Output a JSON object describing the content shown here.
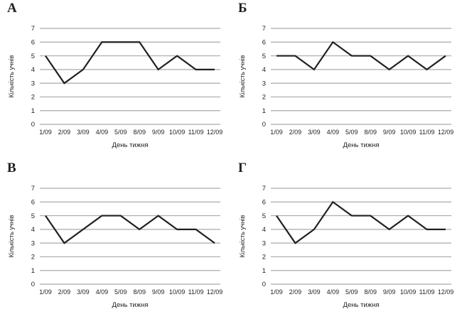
{
  "page": {
    "background": "#ffffff"
  },
  "colors": {
    "line": "#231f20",
    "grid": "#a8aaad",
    "text": "#231f20"
  },
  "chart_data": [
    {
      "type": "line",
      "panel_label": "А",
      "categories": [
        "1/09",
        "2/09",
        "3/09",
        "4/09",
        "5/09",
        "8/09",
        "9/09",
        "10/09",
        "11/09",
        "12/09"
      ],
      "values": [
        5,
        3,
        4,
        6,
        6,
        6,
        4,
        5,
        4,
        4
      ],
      "title": "",
      "xlabel": "День тижня",
      "ylabel": "Кількість учнів",
      "ylim": [
        0,
        7
      ],
      "yticks": [
        0,
        1,
        2,
        3,
        4,
        5,
        6,
        7
      ],
      "grid": "horizontal",
      "legend": "none"
    },
    {
      "type": "line",
      "panel_label": "Б",
      "categories": [
        "1/09",
        "2/09",
        "3/09",
        "4/09",
        "5/09",
        "8/09",
        "9/09",
        "10/09",
        "11/09",
        "12/09"
      ],
      "values": [
        5,
        5,
        4,
        6,
        5,
        5,
        4,
        5,
        4,
        5
      ],
      "title": "",
      "xlabel": "День тижня",
      "ylabel": "Кількість учнів",
      "ylim": [
        0,
        7
      ],
      "yticks": [
        0,
        1,
        2,
        3,
        4,
        5,
        6,
        7
      ],
      "grid": "horizontal",
      "legend": "none"
    },
    {
      "type": "line",
      "panel_label": "В",
      "categories": [
        "1/09",
        "2/09",
        "3/09",
        "4/09",
        "5/09",
        "8/09",
        "9/09",
        "10/09",
        "11/09",
        "12/09"
      ],
      "values": [
        5,
        3,
        4,
        5,
        5,
        4,
        5,
        4,
        4,
        3
      ],
      "title": "",
      "xlabel": "День тижня",
      "ylabel": "Кількість учнів",
      "ylim": [
        0,
        7
      ],
      "yticks": [
        0,
        1,
        2,
        3,
        4,
        5,
        6,
        7
      ],
      "grid": "horizontal",
      "legend": "none"
    },
    {
      "type": "line",
      "panel_label": "Г",
      "categories": [
        "1/09",
        "2/09",
        "3/09",
        "4/09",
        "5/09",
        "8/09",
        "9/09",
        "10/09",
        "11/09",
        "12/09"
      ],
      "values": [
        5,
        3,
        4,
        6,
        5,
        5,
        4,
        5,
        4,
        4
      ],
      "title": "",
      "xlabel": "День тижня",
      "ylabel": "Кількість учнів",
      "ylim": [
        0,
        7
      ],
      "yticks": [
        0,
        1,
        2,
        3,
        4,
        5,
        6,
        7
      ],
      "grid": "horizontal",
      "legend": "none"
    }
  ]
}
